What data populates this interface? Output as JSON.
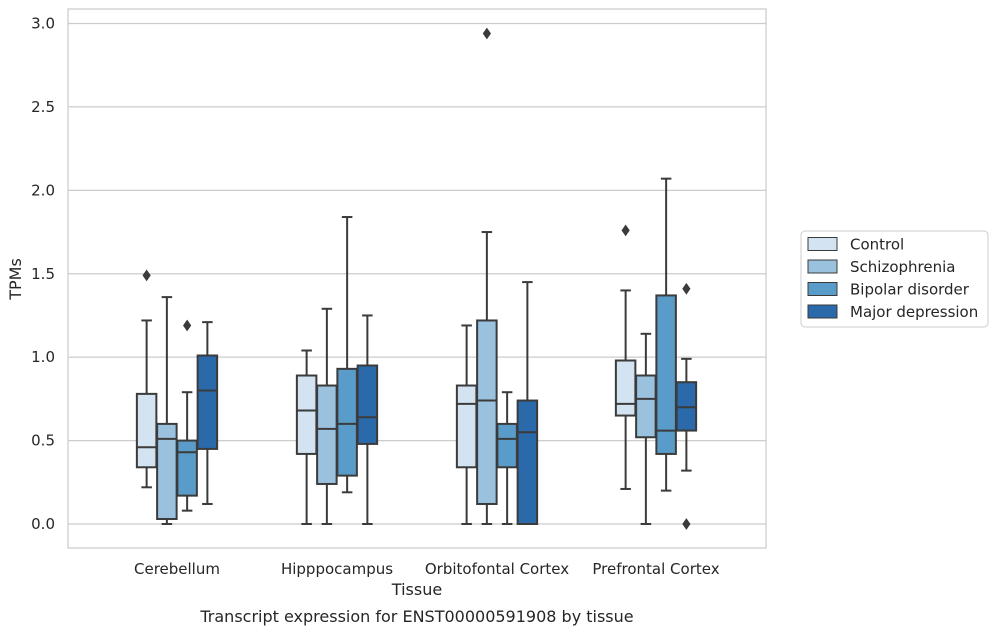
{
  "chart_data": {
    "type": "box",
    "xlabel": "Tissue",
    "ylabel": "TPMs",
    "caption": "Transcript expression for ENST00000591908 by tissue",
    "ylim": [
      -0.14,
      3.09
    ],
    "yticks": [
      "0.0",
      "0.5",
      "1.0",
      "1.5",
      "2.0",
      "2.5",
      "3.0"
    ],
    "grid": "horizontal",
    "legend_position": "right",
    "categories": [
      "Cerebellum",
      "Hipppocampus",
      "Orbitofontal Cortex",
      "Prefrontal Cortex"
    ],
    "series": [
      {
        "name": "Control",
        "color": "#d3e3f2",
        "boxes": [
          {
            "whislo": 0.22,
            "q1": 0.34,
            "med": 0.46,
            "q3": 0.78,
            "whishi": 1.22,
            "fliers": [
              1.49
            ]
          },
          {
            "whislo": 0.0,
            "q1": 0.42,
            "med": 0.68,
            "q3": 0.89,
            "whishi": 1.04,
            "fliers": []
          },
          {
            "whislo": 0.0,
            "q1": 0.34,
            "med": 0.72,
            "q3": 0.83,
            "whishi": 1.19,
            "fliers": []
          },
          {
            "whislo": 0.21,
            "q1": 0.65,
            "med": 0.72,
            "q3": 0.98,
            "whishi": 1.4,
            "fliers": [
              1.76
            ]
          }
        ]
      },
      {
        "name": "Schizophrenia",
        "color": "#9ac2de",
        "boxes": [
          {
            "whislo": 0.0,
            "q1": 0.03,
            "med": 0.51,
            "q3": 0.6,
            "whishi": 1.36,
            "fliers": []
          },
          {
            "whislo": 0.0,
            "q1": 0.24,
            "med": 0.57,
            "q3": 0.83,
            "whishi": 1.29,
            "fliers": []
          },
          {
            "whislo": 0.0,
            "q1": 0.12,
            "med": 0.74,
            "q3": 1.22,
            "whishi": 1.75,
            "fliers": [
              2.94
            ]
          },
          {
            "whislo": 0.0,
            "q1": 0.52,
            "med": 0.75,
            "q3": 0.89,
            "whishi": 1.14,
            "fliers": []
          }
        ]
      },
      {
        "name": "Bipolar disorder",
        "color": "#5a9cc9",
        "boxes": [
          {
            "whislo": 0.08,
            "q1": 0.17,
            "med": 0.43,
            "q3": 0.5,
            "whishi": 0.79,
            "fliers": [
              1.19
            ]
          },
          {
            "whislo": 0.19,
            "q1": 0.29,
            "med": 0.6,
            "q3": 0.93,
            "whishi": 1.84,
            "fliers": []
          },
          {
            "whislo": 0.0,
            "q1": 0.34,
            "med": 0.51,
            "q3": 0.6,
            "whishi": 0.79,
            "fliers": []
          },
          {
            "whislo": 0.2,
            "q1": 0.42,
            "med": 0.56,
            "q3": 1.37,
            "whishi": 2.07,
            "fliers": []
          }
        ]
      },
      {
        "name": "Major depression",
        "color": "#2a6aab",
        "boxes": [
          {
            "whislo": 0.12,
            "q1": 0.45,
            "med": 0.8,
            "q3": 1.01,
            "whishi": 1.21,
            "fliers": []
          },
          {
            "whislo": 0.0,
            "q1": 0.48,
            "med": 0.64,
            "q3": 0.95,
            "whishi": 1.25,
            "fliers": []
          },
          {
            "whislo": 0.0,
            "q1": 0.0,
            "med": 0.55,
            "q3": 0.74,
            "whishi": 1.45,
            "fliers": []
          },
          {
            "whislo": 0.32,
            "q1": 0.56,
            "med": 0.7,
            "q3": 0.85,
            "whishi": 0.99,
            "fliers": [
              1.41,
              0.0
            ]
          }
        ]
      }
    ]
  }
}
